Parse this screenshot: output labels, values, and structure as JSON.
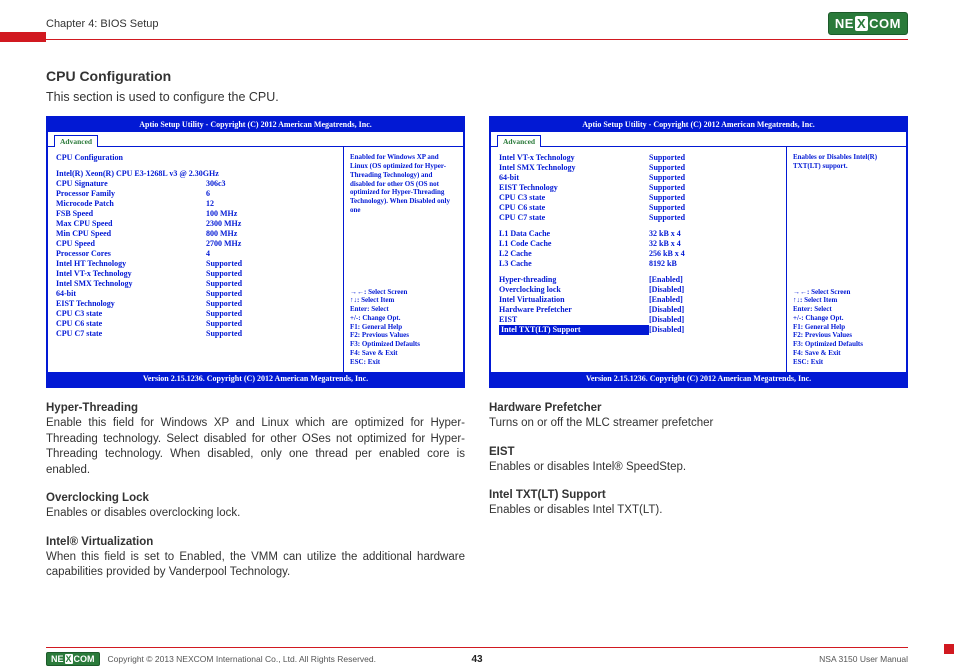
{
  "header": {
    "chapter": "Chapter 4: BIOS Setup",
    "brand_text": "NEXCOM"
  },
  "section": {
    "title": "CPU Configuration",
    "intro": "This section is used to configure the CPU."
  },
  "bios_common": {
    "titlebar": "Aptio Setup Utility - Copyright (C) 2012 American Megatrends, Inc.",
    "tab": "Advanced",
    "footer": "Version 2.15.1236. Copyright (C) 2012 American Megatrends, Inc.",
    "nav": {
      "l1": "→←: Select Screen",
      "l2": "↑↓: Select Item",
      "l3": "Enter: Select",
      "l4": "+/-: Change Opt.",
      "l5": "F1: General Help",
      "l6": "F2: Previous Values",
      "l7": "F3: Optimized Defaults",
      "l8": "F4: Save & Exit",
      "l9": "ESC: Exit"
    }
  },
  "bios_left": {
    "heading": "CPU Configuration",
    "cpu_model": "Intel(R) Xeon(R) CPU E3-1268L v3 @ 2.30GHz",
    "rows": [
      {
        "label": "CPU Signature",
        "value": "306c3"
      },
      {
        "label": "Processor Family",
        "value": "6"
      },
      {
        "label": "Microcode Patch",
        "value": "12"
      },
      {
        "label": "FSB Speed",
        "value": "100 MHz"
      },
      {
        "label": "Max CPU Speed",
        "value": "2300 MHz"
      },
      {
        "label": "Min CPU Speed",
        "value": "800 MHz"
      },
      {
        "label": "CPU Speed",
        "value": "2700 MHz"
      },
      {
        "label": "Processor Cores",
        "value": "4"
      },
      {
        "label": "Intel HT Technology",
        "value": "Supported"
      },
      {
        "label": "Intel VT-x Technology",
        "value": "Supported"
      },
      {
        "label": "Intel SMX Technology",
        "value": "Supported"
      },
      {
        "label": "64-bit",
        "value": "Supported"
      },
      {
        "label": "EIST Technology",
        "value": "Supported"
      },
      {
        "label": "CPU C3 state",
        "value": "Supported"
      },
      {
        "label": "CPU C6 state",
        "value": "Supported"
      },
      {
        "label": "CPU C7 state",
        "value": "Supported"
      }
    ],
    "help_top": "Enabled for Windows XP and Linux (OS optimized for Hyper-Threading Technology) and disabled for other OS (OS not optimized for Hyper-Threading Technology). When Disabled only one"
  },
  "bios_right": {
    "rows_top": [
      {
        "label": "Intel VT-x Technology",
        "value": "Supported"
      },
      {
        "label": "Intel SMX Technology",
        "value": "Supported"
      },
      {
        "label": "64-bit",
        "value": "Supported"
      },
      {
        "label": "EIST Technology",
        "value": "Supported"
      },
      {
        "label": "CPU C3 state",
        "value": "Supported"
      },
      {
        "label": "CPU C6 state",
        "value": "Supported"
      },
      {
        "label": "CPU C7 state",
        "value": "Supported"
      }
    ],
    "rows_cache": [
      {
        "label": "L1 Data Cache",
        "value": "32 kB x 4"
      },
      {
        "label": "L1 Code Cache",
        "value": "32 kB x 4"
      },
      {
        "label": "L2 Cache",
        "value": "256 kB x 4"
      },
      {
        "label": "L3 Cache",
        "value": "8192 kB"
      }
    ],
    "rows_settings": [
      {
        "label": "Hyper-threading",
        "value": "[Enabled]"
      },
      {
        "label": "Overclocking lock",
        "value": "[Disabled]"
      },
      {
        "label": "Intel Virtualization",
        "value": "[Enabled]"
      },
      {
        "label": "Hardware Prefetcher",
        "value": "[Disabled]"
      },
      {
        "label": "EIST",
        "value": "[Disabled]"
      }
    ],
    "selected": {
      "label": "Intel TXT(LT) Support",
      "value": "[Disabled]"
    },
    "help_top": "Enables or Disables Intel(R) TXT(LT) support."
  },
  "desc_left": [
    {
      "title": "Hyper-Threading",
      "body": "Enable this field for Windows XP and Linux which are optimized for Hyper-Threading technology. Select disabled for other OSes not optimized for Hyper-Threading technology. When disabled, only one thread per enabled core is enabled."
    },
    {
      "title": "Overclocking Lock",
      "body": "Enables or disables overclocking lock."
    },
    {
      "title": "Intel® Virtualization",
      "body": "When this field is set to Enabled, the VMM can utilize the additional hardware capabilities provided by Vanderpool Technology."
    }
  ],
  "desc_right": [
    {
      "title": "Hardware Prefetcher",
      "body": "Turns on or off the MLC streamer prefetcher"
    },
    {
      "title": "EIST",
      "body": "Enables or disables Intel® SpeedStep."
    },
    {
      "title": "Intel TXT(LT) Support",
      "body": "Enables or disables Intel TXT(LT)."
    }
  ],
  "footer": {
    "copyright": "Copyright © 2013 NEXCOM International Co., Ltd. All Rights Reserved.",
    "page": "43",
    "doc": "NSA 3150 User Manual"
  },
  "colors": {
    "bios_blue": "#0219d4",
    "accent_red": "#d11920",
    "brand_green": "#2a7a3a"
  }
}
